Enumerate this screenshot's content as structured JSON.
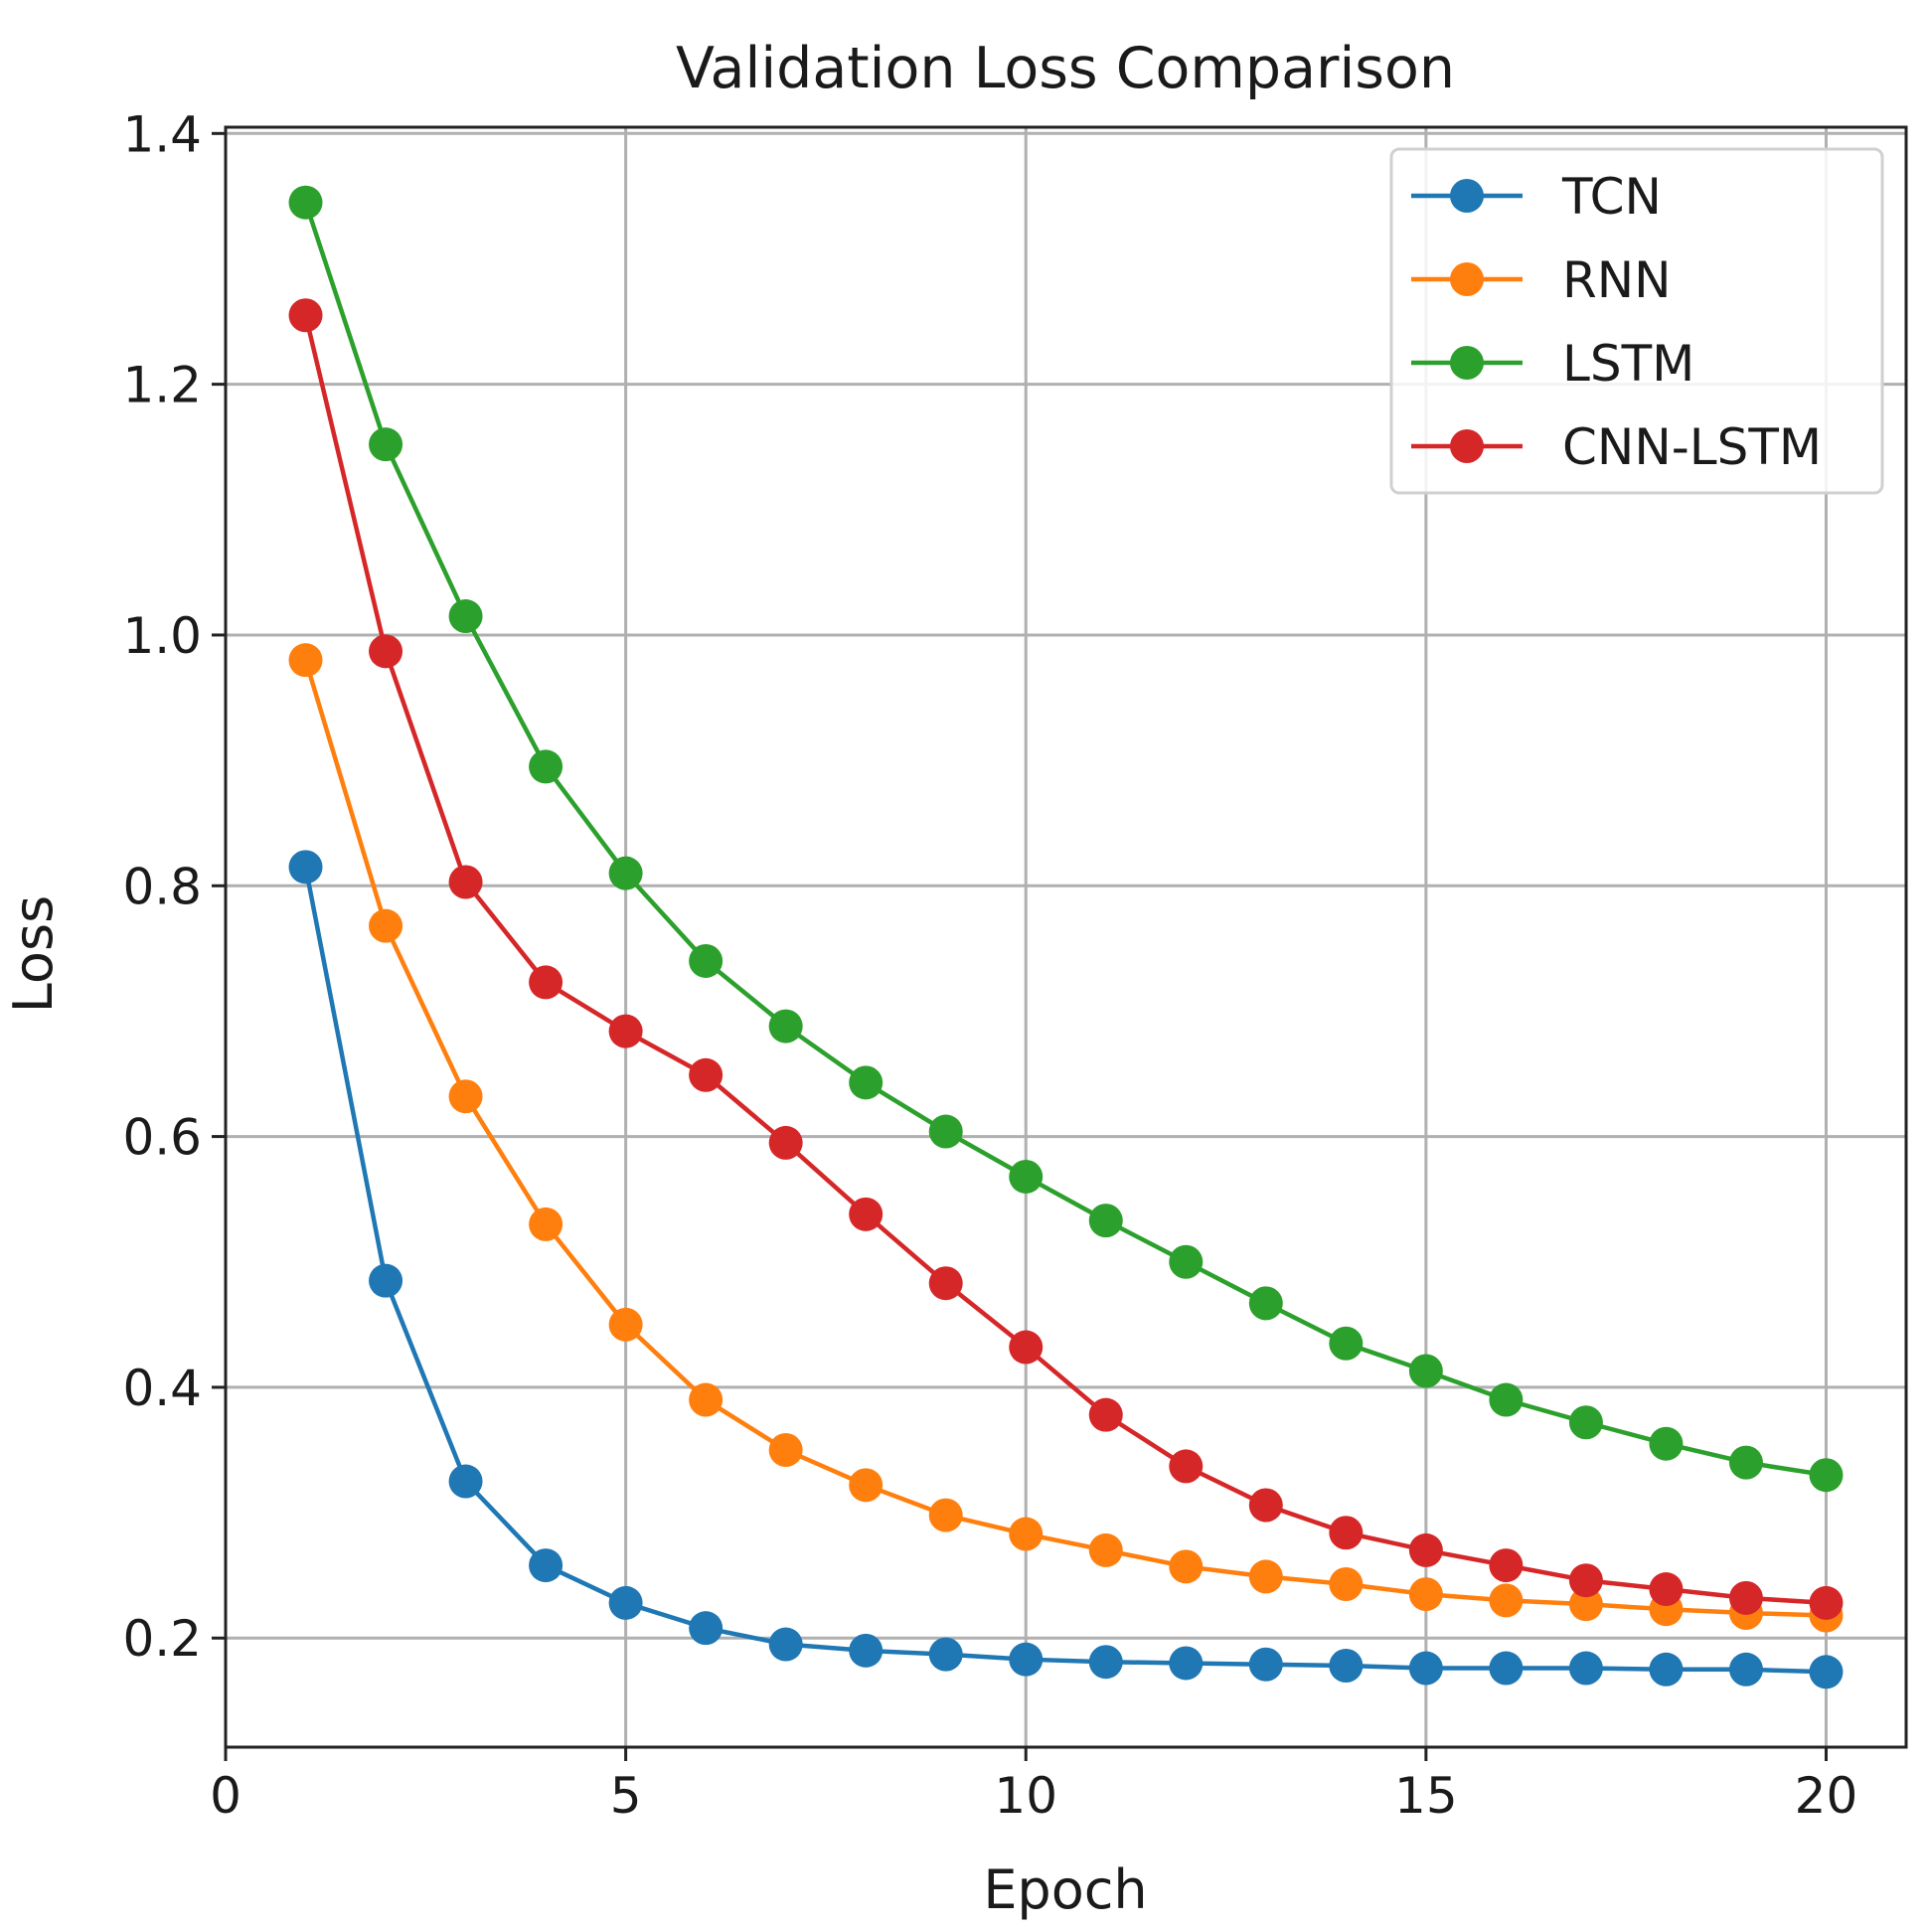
{
  "chart_data": {
    "type": "line",
    "title": "Validation Loss Comparison",
    "xlabel": "Epoch",
    "ylabel": "Loss",
    "xlim": [
      0,
      21
    ],
    "ylim": [
      0.113,
      1.405
    ],
    "xticks": [
      0,
      5,
      10,
      15,
      20
    ],
    "xtick_labels": [
      "0",
      "5",
      "10",
      "15",
      "20"
    ],
    "yticks": [
      0.2,
      0.4,
      0.6,
      0.8,
      1.0,
      1.2,
      1.4
    ],
    "ytick_labels": [
      "0.2",
      "0.4",
      "0.6",
      "0.8",
      "1.0",
      "1.2",
      "1.4"
    ],
    "grid": true,
    "legend_position": "top-right",
    "x": [
      1,
      2,
      3,
      4,
      5,
      6,
      7,
      8,
      9,
      10,
      11,
      12,
      13,
      14,
      15,
      16,
      17,
      18,
      19,
      20
    ],
    "series": [
      {
        "name": "TCN",
        "color": "#1f77b4",
        "values": [
          0.815,
          0.485,
          0.325,
          0.258,
          0.228,
          0.208,
          0.195,
          0.19,
          0.187,
          0.183,
          0.181,
          0.18,
          0.179,
          0.178,
          0.176,
          0.176,
          0.176,
          0.175,
          0.175,
          0.173
        ]
      },
      {
        "name": "RNN",
        "color": "#ff7f0e",
        "values": [
          0.98,
          0.768,
          0.632,
          0.53,
          0.45,
          0.39,
          0.35,
          0.322,
          0.298,
          0.283,
          0.27,
          0.257,
          0.249,
          0.243,
          0.235,
          0.23,
          0.227,
          0.223,
          0.22,
          0.218
        ]
      },
      {
        "name": "LSTM",
        "color": "#2ca02c",
        "values": [
          1.345,
          1.152,
          1.015,
          0.895,
          0.81,
          0.74,
          0.688,
          0.643,
          0.604,
          0.568,
          0.533,
          0.5,
          0.467,
          0.435,
          0.413,
          0.39,
          0.372,
          0.355,
          0.34,
          0.33
        ]
      },
      {
        "name": "CNN-LSTM",
        "color": "#d62728",
        "values": [
          1.255,
          0.987,
          0.803,
          0.723,
          0.684,
          0.649,
          0.595,
          0.538,
          0.483,
          0.432,
          0.378,
          0.337,
          0.306,
          0.284,
          0.27,
          0.258,
          0.246,
          0.239,
          0.232,
          0.228
        ]
      }
    ]
  }
}
